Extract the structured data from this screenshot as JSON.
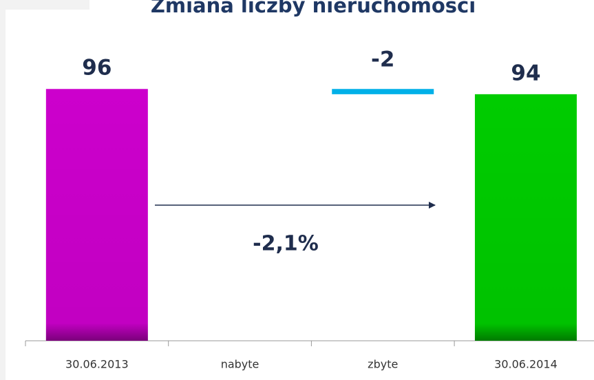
{
  "chart_data": {
    "type": "waterfall",
    "title": "Zmiana liczby nieruchomości",
    "categories": [
      "30.06.2013",
      "nabyte",
      "zbyte",
      "30.06.2014"
    ],
    "values": [
      96,
      0,
      -2,
      94
    ],
    "colors": [
      "#cc00cc",
      "#00b0e8",
      "#00b0e8",
      "#00cc00"
    ],
    "ylim": [
      0,
      100
    ],
    "annotation": "-2,1%"
  }
}
